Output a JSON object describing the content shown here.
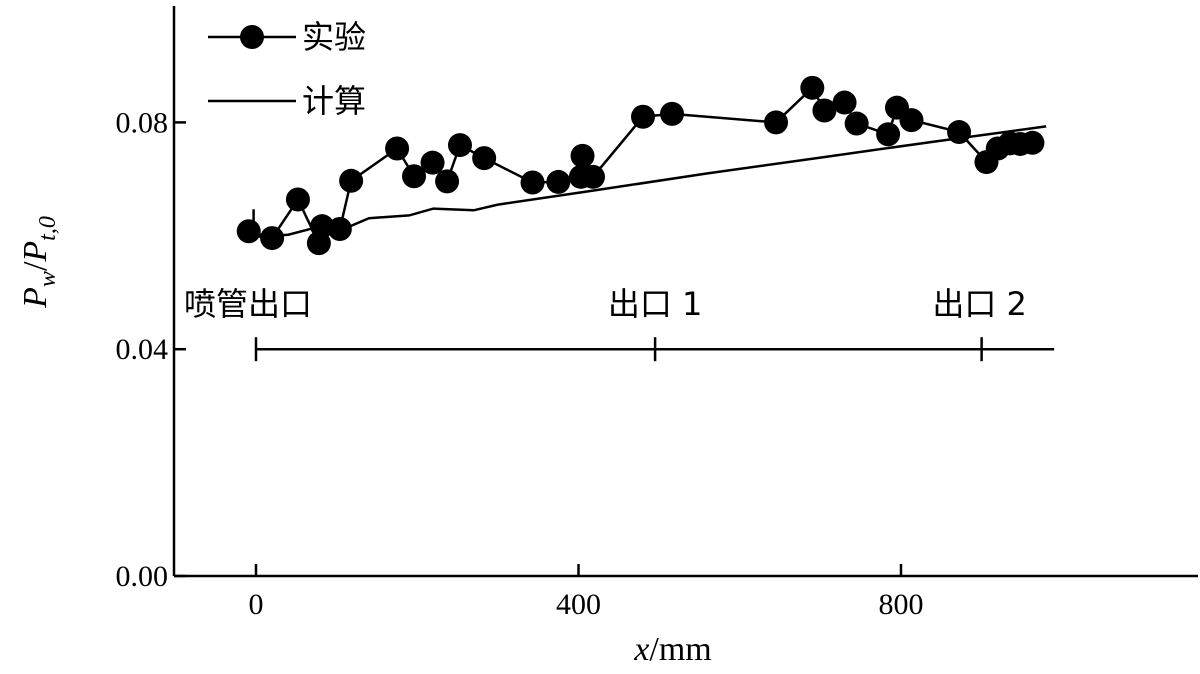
{
  "chart_data": {
    "type": "line",
    "title": "",
    "xlabel": "x/mm",
    "ylabel": "Pw/Pt,0",
    "xlabel_parts": {
      "var": "x",
      "unit": "mm"
    },
    "ylabel_parts": {
      "num": "P",
      "num_sub": "w",
      "den": "P",
      "den_sub": "t,0"
    },
    "xlim": [
      -100,
      1160
    ],
    "ylim": [
      0.0,
      0.1
    ],
    "x_ticks": [
      0,
      400,
      800
    ],
    "y_ticks": [
      0.0,
      0.04,
      0.08
    ],
    "x_tick_labels": [
      "0",
      "400",
      "800"
    ],
    "y_tick_labels": [
      "0.00",
      "0.04",
      "0.08"
    ],
    "legend": {
      "placement": "top-left"
    },
    "series": [
      {
        "name": "实验",
        "style": "line-marker",
        "color": "#000000",
        "points": [
          [
            -9,
            0.0608
          ],
          [
            20,
            0.0596
          ],
          [
            52,
            0.0664
          ],
          [
            78,
            0.0587
          ],
          [
            82,
            0.0617
          ],
          [
            104,
            0.0612
          ],
          [
            118,
            0.0697
          ],
          [
            175,
            0.0754
          ],
          [
            196,
            0.0705
          ],
          [
            219,
            0.0729
          ],
          [
            237,
            0.0696
          ],
          [
            253,
            0.076
          ],
          [
            283,
            0.0737
          ],
          [
            343,
            0.0694
          ],
          [
            375,
            0.0695
          ],
          [
            403,
            0.0704
          ],
          [
            405,
            0.0741
          ],
          [
            418,
            0.0704
          ],
          [
            480,
            0.081
          ],
          [
            516,
            0.0815
          ],
          [
            645,
            0.08
          ],
          [
            690,
            0.0861
          ],
          [
            705,
            0.0821
          ],
          [
            730,
            0.0835
          ],
          [
            745,
            0.0798
          ],
          [
            784,
            0.0779
          ],
          [
            795,
            0.0826
          ],
          [
            813,
            0.0804
          ],
          [
            872,
            0.0783
          ],
          [
            906,
            0.073
          ],
          [
            920,
            0.0754
          ],
          [
            935,
            0.0763
          ],
          [
            948,
            0.0762
          ],
          [
            963,
            0.0764
          ]
        ]
      },
      {
        "name": "计算",
        "style": "line",
        "color": "#000000",
        "points": [
          [
            -3,
            0.0647
          ],
          [
            -3,
            0.0598
          ],
          [
            40,
            0.0602
          ],
          [
            78,
            0.0616
          ],
          [
            112,
            0.0614
          ],
          [
            140,
            0.0631
          ],
          [
            190,
            0.0636
          ],
          [
            220,
            0.0648
          ],
          [
            270,
            0.0645
          ],
          [
            300,
            0.0655
          ],
          [
            420,
            0.068
          ],
          [
            560,
            0.071
          ],
          [
            700,
            0.0738
          ],
          [
            840,
            0.0766
          ],
          [
            980,
            0.0793
          ]
        ]
      }
    ],
    "annotations": {
      "line_y": 0.04,
      "x_start": 0,
      "x_end": 990,
      "markers": [
        {
          "x": 0,
          "label": "喷管出口"
        },
        {
          "x": 495,
          "label": "出口 1"
        },
        {
          "x": 900,
          "label": "出口 2"
        }
      ]
    }
  }
}
